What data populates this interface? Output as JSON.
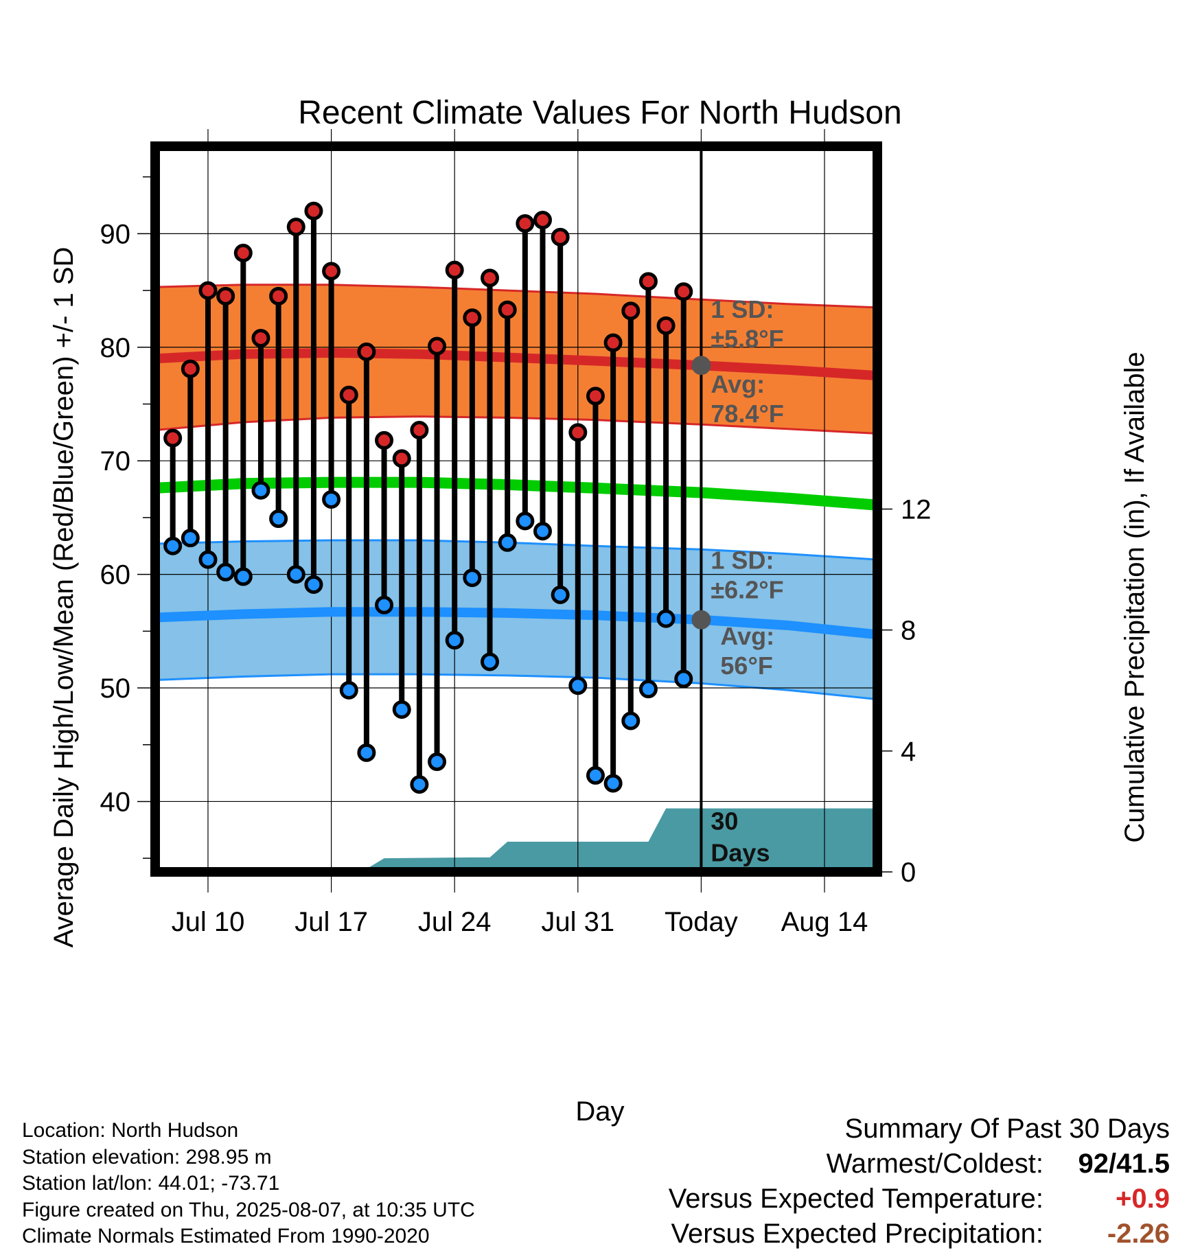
{
  "chart_data": {
    "type": "line",
    "title": "Recent Climate Values For North Hudson",
    "xlabel": "Day",
    "ylabel": "Average Daily High/Low/Mean (Red/Blue/Green) +/- 1 SD",
    "y2label": "Cumulative Precipitation (in), If Available",
    "x_tick_labels": [
      "Jul 10",
      "Jul 17",
      "Jul 24",
      "Jul 31",
      "Today",
      "Aug 14"
    ],
    "y_ticks": [
      40,
      50,
      60,
      70,
      80,
      90
    ],
    "y2_ticks": [
      0,
      4,
      8,
      12
    ],
    "ylim": [
      33.8,
      97.7
    ],
    "y2lim": [
      0,
      24
    ],
    "xlim": [
      "2025-07-07",
      "2025-08-17"
    ],
    "today": "2025-08-07",
    "grid": true,
    "days": [
      "2025-07-08",
      "2025-07-09",
      "2025-07-10",
      "2025-07-11",
      "2025-07-12",
      "2025-07-13",
      "2025-07-14",
      "2025-07-15",
      "2025-07-16",
      "2025-07-17",
      "2025-07-18",
      "2025-07-19",
      "2025-07-20",
      "2025-07-21",
      "2025-07-22",
      "2025-07-23",
      "2025-07-24",
      "2025-07-25",
      "2025-07-26",
      "2025-07-27",
      "2025-07-28",
      "2025-07-29",
      "2025-07-30",
      "2025-07-31",
      "2025-08-01",
      "2025-08-02",
      "2025-08-03",
      "2025-08-04",
      "2025-08-05",
      "2025-08-06"
    ],
    "series": [
      {
        "name": "High",
        "color": "#d62728",
        "values": [
          72.0,
          78.1,
          85.0,
          84.5,
          88.3,
          80.8,
          84.5,
          90.6,
          92.0,
          86.7,
          75.8,
          79.6,
          71.8,
          70.2,
          72.7,
          80.1,
          86.8,
          82.6,
          86.1,
          83.3,
          90.9,
          91.2,
          89.7,
          72.5,
          75.7,
          80.4,
          83.2,
          85.8,
          81.9,
          84.9
        ]
      },
      {
        "name": "Low",
        "color": "#1e90ff",
        "values": [
          62.5,
          63.2,
          61.3,
          60.2,
          59.8,
          67.4,
          64.9,
          60.0,
          59.1,
          66.6,
          49.8,
          44.3,
          57.3,
          48.1,
          41.5,
          43.5,
          54.2,
          59.7,
          52.3,
          62.8,
          64.7,
          63.8,
          58.2,
          50.2,
          42.3,
          41.6,
          47.1,
          49.9,
          56.1,
          50.8
        ]
      }
    ],
    "normals": {
      "days": [
        "2025-07-07",
        "2025-07-12",
        "2025-07-17",
        "2025-07-22",
        "2025-07-27",
        "2025-08-01",
        "2025-08-07",
        "2025-08-12",
        "2025-08-17"
      ],
      "high_mean": [
        79.0,
        79.4,
        79.5,
        79.4,
        79.1,
        78.8,
        78.4,
        78.0,
        77.5
      ],
      "high_upper": [
        85.3,
        85.5,
        85.5,
        85.3,
        85.0,
        84.7,
        84.2,
        83.8,
        83.5
      ],
      "high_lower": [
        72.7,
        73.4,
        73.8,
        73.9,
        73.8,
        73.6,
        73.2,
        72.8,
        72.4
      ],
      "mean": [
        67.6,
        68.0,
        68.1,
        68.1,
        67.9,
        67.6,
        67.2,
        66.7,
        66.1
      ],
      "low_mean": [
        56.2,
        56.5,
        56.7,
        56.7,
        56.6,
        56.4,
        56.0,
        55.5,
        54.7
      ],
      "low_upper": [
        62.7,
        62.9,
        63.0,
        63.0,
        62.8,
        62.5,
        62.2,
        61.8,
        61.3
      ],
      "low_lower": [
        50.7,
        51.0,
        51.2,
        51.2,
        51.1,
        50.9,
        50.4,
        49.8,
        49.0
      ]
    },
    "precip": {
      "name": "Cumulative Precipitation",
      "color": "#4a9aa3",
      "days": [
        "2025-07-07",
        "2025-07-16",
        "2025-07-17",
        "2025-07-19",
        "2025-07-20",
        "2025-07-25",
        "2025-07-26",
        "2025-07-27",
        "2025-08-03",
        "2025-08-04",
        "2025-08-05",
        "2025-08-17"
      ],
      "values": [
        0.0,
        0.0,
        0.07,
        0.1,
        0.45,
        0.48,
        0.48,
        1.0,
        1.0,
        1.0,
        2.1,
        2.1
      ]
    },
    "annotations": {
      "high_sd_label": "1 SD:",
      "high_sd_value": "±5.8°F",
      "high_avg_label": "Avg:",
      "high_avg_value": "78.4°F",
      "low_sd_label": "1 SD:",
      "low_sd_value": "±6.2°F",
      "low_avg_label": "Avg:",
      "low_avg_value": "56°F",
      "precip_label_1": "30",
      "precip_label_2": "Days"
    }
  },
  "footer": {
    "location": "Location: North Hudson",
    "elevation": "Station elevation: 298.95 m",
    "latlon": "Station lat/lon: 44.01; -73.71",
    "created": "Figure created on Thu, 2025-08-07, at 10:35 UTC",
    "normals": "Climate Normals Estimated From 1990-2020"
  },
  "summary": {
    "heading": "Summary Of Past 30 Days",
    "warmest_coldest_label": "Warmest/Coldest:",
    "warmest_coldest_value": "92/41.5",
    "temp_label": "Versus Expected Temperature:",
    "temp_value": "+0.9",
    "temp_color": "#d62728",
    "precip_label": "Versus Expected Precipitation:",
    "precip_value": "-2.26",
    "precip_color": "#a0522d"
  }
}
